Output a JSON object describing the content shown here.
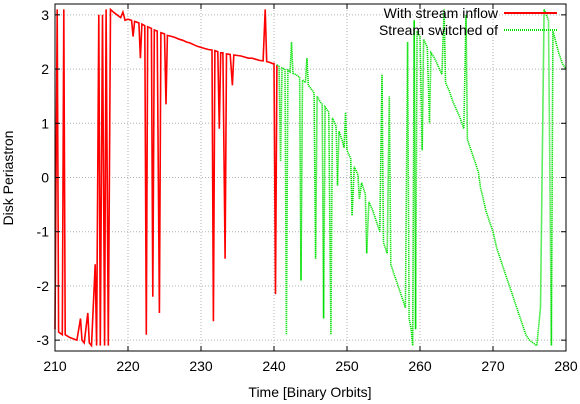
{
  "chart_data": {
    "type": "line",
    "xlabel": "Time [Binary Orbits]",
    "ylabel": "Disk  Periastron",
    "xlim": [
      210,
      280
    ],
    "ylim": [
      -3.2,
      3.2
    ],
    "xticks": [
      "210",
      "220",
      "230",
      "240",
      "250",
      "260",
      "270",
      "280"
    ],
    "yticks": [
      "3",
      "2",
      "1",
      "0",
      "-1",
      "-2",
      "-3"
    ],
    "grid": true,
    "legend_position": "top-right",
    "series": [
      {
        "name": "With stream inflow",
        "color": "#ff0000",
        "style": "solid",
        "points": [
          [
            210.0,
            -2.8
          ],
          [
            210.3,
            3.1
          ],
          [
            210.5,
            -2.85
          ],
          [
            211.0,
            -2.9
          ],
          [
            211.2,
            3.1
          ],
          [
            211.4,
            -2.9
          ],
          [
            212.0,
            -2.95
          ],
          [
            213.0,
            -3.0
          ],
          [
            213.5,
            -2.6
          ],
          [
            213.7,
            -3.0
          ],
          [
            214.0,
            -3.05
          ],
          [
            214.5,
            -2.5
          ],
          [
            214.7,
            -3.05
          ],
          [
            215.0,
            -3.1
          ],
          [
            215.5,
            -1.6
          ],
          [
            215.7,
            -3.1
          ],
          [
            216.0,
            3.0
          ],
          [
            216.2,
            -3.1
          ],
          [
            216.5,
            3.0
          ],
          [
            216.8,
            -3.1
          ],
          [
            217.0,
            3.1
          ],
          [
            217.3,
            -3.1
          ],
          [
            217.6,
            3.1
          ],
          [
            218.0,
            3.05
          ],
          [
            218.5,
            3.0
          ],
          [
            219.0,
            2.95
          ],
          [
            219.3,
            3.05
          ],
          [
            219.6,
            2.9
          ],
          [
            220.0,
            2.92
          ],
          [
            220.5,
            2.9
          ],
          [
            220.7,
            2.6
          ],
          [
            220.9,
            2.88
          ],
          [
            221.5,
            2.85
          ],
          [
            221.7,
            2.2
          ],
          [
            221.9,
            2.83
          ],
          [
            222.3,
            2.8
          ],
          [
            222.5,
            -2.9
          ],
          [
            222.7,
            2.78
          ],
          [
            223.2,
            2.75
          ],
          [
            223.4,
            -2.2
          ],
          [
            223.6,
            2.72
          ],
          [
            224.0,
            2.7
          ],
          [
            224.3,
            -2.5
          ],
          [
            224.5,
            2.67
          ],
          [
            225.0,
            2.65
          ],
          [
            225.2,
            1.35
          ],
          [
            225.4,
            2.62
          ],
          [
            226.0,
            2.6
          ],
          [
            226.5,
            2.58
          ],
          [
            227.0,
            2.55
          ],
          [
            227.5,
            2.53
          ],
          [
            228.0,
            2.5
          ],
          [
            228.5,
            2.48
          ],
          [
            229.0,
            2.45
          ],
          [
            229.5,
            2.42
          ],
          [
            230.0,
            2.4
          ],
          [
            230.5,
            2.38
          ],
          [
            231.0,
            2.36
          ],
          [
            231.5,
            2.35
          ],
          [
            231.7,
            -2.65
          ],
          [
            231.9,
            2.34
          ],
          [
            232.3,
            2.32
          ],
          [
            232.5,
            0.9
          ],
          [
            232.7,
            2.3
          ],
          [
            233.0,
            2.3
          ],
          [
            233.3,
            -1.5
          ],
          [
            233.5,
            2.28
          ],
          [
            234.0,
            2.27
          ],
          [
            234.3,
            1.7
          ],
          [
            234.5,
            2.26
          ],
          [
            235.0,
            2.25
          ],
          [
            235.5,
            2.24
          ],
          [
            236.0,
            2.22
          ],
          [
            236.5,
            2.2
          ],
          [
            237.0,
            2.2
          ],
          [
            237.5,
            2.18
          ],
          [
            238.0,
            2.16
          ],
          [
            238.5,
            2.15
          ],
          [
            238.8,
            3.1
          ],
          [
            239.0,
            2.14
          ],
          [
            239.5,
            2.12
          ],
          [
            239.8,
            2.1
          ],
          [
            240.0,
            2.1
          ],
          [
            240.2,
            -2.15
          ],
          [
            240.4,
            2.08
          ]
        ]
      },
      {
        "name": "Stream switched of",
        "color": "#00e000",
        "style": "dotted",
        "points": [
          [
            240.4,
            2.08
          ],
          [
            240.7,
            2.05
          ],
          [
            240.9,
            0.3
          ],
          [
            241.1,
            2.02
          ],
          [
            241.5,
            2.0
          ],
          [
            241.7,
            -2.9
          ],
          [
            241.9,
            1.98
          ],
          [
            242.2,
            1.95
          ],
          [
            242.4,
            2.5
          ],
          [
            242.6,
            1.92
          ],
          [
            243.0,
            1.9
          ],
          [
            243.3,
            1.87
          ],
          [
            243.5,
            1.85
          ],
          [
            243.7,
            -1.9
          ],
          [
            243.9,
            1.8
          ],
          [
            244.3,
            1.75
          ],
          [
            244.5,
            2.2
          ],
          [
            244.7,
            1.7
          ],
          [
            245.0,
            1.65
          ],
          [
            245.3,
            1.6
          ],
          [
            245.5,
            1.55
          ],
          [
            245.7,
            -1.5
          ],
          [
            245.9,
            1.5
          ],
          [
            246.3,
            1.4
          ],
          [
            246.6,
            1.35
          ],
          [
            246.8,
            -2.6
          ],
          [
            247.0,
            1.3
          ],
          [
            247.5,
            1.2
          ],
          [
            247.8,
            -2.9
          ],
          [
            248.0,
            1.1
          ],
          [
            248.5,
            0.95
          ],
          [
            248.7,
            -0.15
          ],
          [
            248.9,
            0.85
          ],
          [
            249.3,
            0.7
          ],
          [
            249.6,
            0.55
          ],
          [
            249.8,
            1.2
          ],
          [
            250.0,
            0.5
          ],
          [
            250.5,
            0.35
          ],
          [
            250.7,
            -0.7
          ],
          [
            251.0,
            0.2
          ],
          [
            251.5,
            0.05
          ],
          [
            251.7,
            -0.4
          ],
          [
            252.0,
            -0.1
          ],
          [
            252.5,
            -0.3
          ],
          [
            252.7,
            -1.4
          ],
          [
            253.0,
            -0.45
          ],
          [
            253.5,
            -0.6
          ],
          [
            254.0,
            -0.8
          ],
          [
            254.5,
            -1.0
          ],
          [
            254.8,
            1.9
          ],
          [
            255.0,
            -1.2
          ],
          [
            255.5,
            -1.4
          ],
          [
            255.8,
            1.5
          ],
          [
            256.0,
            -1.6
          ],
          [
            256.5,
            -1.8
          ],
          [
            257.0,
            -2.0
          ],
          [
            257.5,
            -2.2
          ],
          [
            258.0,
            -2.4
          ],
          [
            258.3,
            2.5
          ],
          [
            258.5,
            -2.6
          ],
          [
            258.8,
            -2.8
          ],
          [
            259.0,
            -3.1
          ],
          [
            259.2,
            2.9
          ],
          [
            259.4,
            -2.8
          ],
          [
            259.6,
            2.7
          ],
          [
            259.8,
            2.65
          ],
          [
            260.0,
            2.6
          ],
          [
            260.3,
            0.5
          ],
          [
            260.5,
            2.55
          ],
          [
            261.0,
            2.4
          ],
          [
            261.3,
            1.0
          ],
          [
            261.5,
            2.3
          ],
          [
            262.0,
            2.2
          ],
          [
            262.5,
            2.05
          ],
          [
            263.0,
            1.9
          ],
          [
            263.3,
            3.1
          ],
          [
            263.5,
            1.75
          ],
          [
            264.0,
            1.6
          ],
          [
            264.5,
            1.4
          ],
          [
            265.0,
            1.25
          ],
          [
            265.5,
            1.1
          ],
          [
            266.0,
            0.9
          ],
          [
            266.3,
            3.0
          ],
          [
            266.5,
            0.7
          ],
          [
            267.0,
            0.5
          ],
          [
            267.5,
            0.3
          ],
          [
            268.0,
            0.1
          ],
          [
            268.3,
            -0.2
          ],
          [
            268.5,
            -0.3
          ],
          [
            269.0,
            -0.6
          ],
          [
            269.5,
            -0.8
          ],
          [
            270.0,
            -1.0
          ],
          [
            270.5,
            -1.3
          ],
          [
            271.0,
            -1.5
          ],
          [
            271.5,
            -1.7
          ],
          [
            272.0,
            -1.9
          ],
          [
            272.5,
            -2.1
          ],
          [
            273.0,
            -2.3
          ],
          [
            273.5,
            -2.5
          ],
          [
            274.0,
            -2.7
          ],
          [
            274.5,
            -2.9
          ],
          [
            275.0,
            -3.0
          ],
          [
            275.5,
            -3.05
          ],
          [
            276.0,
            -3.1
          ],
          [
            276.5,
            -2.4
          ],
          [
            277.0,
            3.1
          ],
          [
            277.3,
            3.0
          ],
          [
            277.6,
            2.9
          ],
          [
            278.0,
            -3.1
          ],
          [
            278.2,
            2.7
          ],
          [
            278.6,
            2.5
          ],
          [
            279.0,
            2.3
          ],
          [
            279.5,
            2.1
          ],
          [
            280.0,
            2.0
          ]
        ]
      }
    ]
  }
}
